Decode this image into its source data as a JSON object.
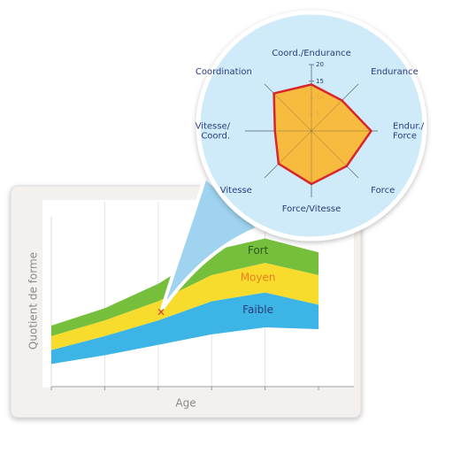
{
  "chart_data": [
    {
      "type": "band",
      "x_label": "Age",
      "y_label": "Quotient de forme",
      "categories": [
        null,
        null,
        null,
        null,
        null,
        null
      ],
      "ylim": [
        0,
        100
      ],
      "series": [
        {
          "name": "Faible",
          "color": "#3cb4e5",
          "text_color": "#2b3c7a",
          "low": [
            13,
            18,
            24,
            30,
            34,
            33
          ],
          "high": [
            21,
            29,
            38,
            49,
            54,
            47
          ]
        },
        {
          "name": "Moyen",
          "color": "#f7dc2e",
          "text_color": "#f07c1e",
          "low": [
            21,
            29,
            38,
            49,
            54,
            47
          ],
          "high": [
            29,
            38,
            49,
            64,
            71,
            64
          ]
        },
        {
          "name": "Fort",
          "color": "#76bf3c",
          "text_color": "#2b5a1a",
          "low": [
            29,
            38,
            49,
            64,
            71,
            64
          ],
          "high": [
            35,
            45,
            59,
            78,
            85,
            77
          ]
        }
      ]
    },
    {
      "type": "radar",
      "categories": [
        "Coord./Endurance",
        "Endurance",
        "Endur./\nForce",
        "Force",
        "Force/Vitesse",
        "Vitesse",
        "Vitesse/\nCoord.",
        "Coordination"
      ],
      "values": [
        14,
        13,
        18,
        15,
        16,
        14,
        11,
        16
      ],
      "rlim": [
        0,
        20
      ],
      "rticks": [
        5,
        10,
        15,
        20
      ],
      "color": "#fbb72a",
      "edge_color": "#d9262b"
    }
  ]
}
